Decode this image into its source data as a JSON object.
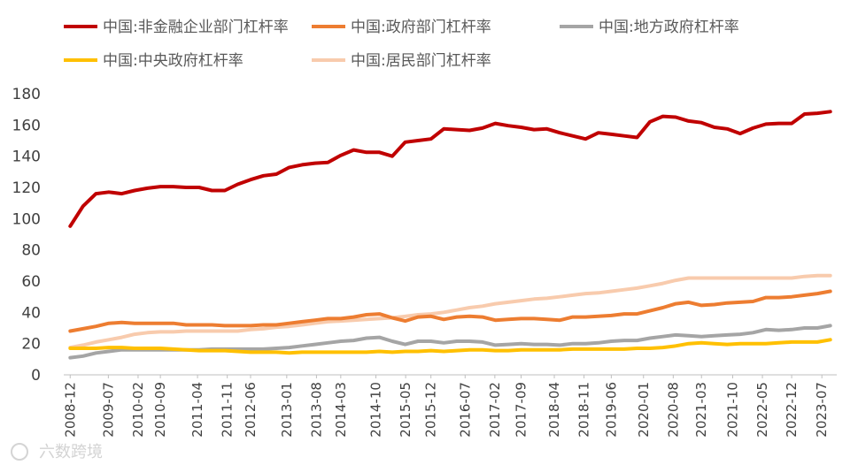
{
  "chart_data": {
    "type": "line",
    "title": "",
    "xlabel": "",
    "ylabel": "",
    "ylim": [
      0,
      180
    ],
    "yticks": [
      0,
      20,
      40,
      60,
      80,
      100,
      120,
      140,
      160,
      180
    ],
    "grid": false,
    "legend_position": "top",
    "x_tick_labels": [
      "2008-12",
      "2009-07",
      "2010-02",
      "2010-09",
      "2011-04",
      "2011-11",
      "2012-06",
      "2013-01",
      "2013-08",
      "2014-03",
      "2014-10",
      "2015-05",
      "2015-12",
      "2016-07",
      "2017-02",
      "2017-09",
      "2018-04",
      "2018-11",
      "2019-06",
      "2020-01",
      "2020-08",
      "2021-03",
      "2021-10",
      "2022-05",
      "2022-12",
      "2023-07"
    ],
    "x": [
      "2008-12",
      "2009-03",
      "2009-06",
      "2009-09",
      "2009-12",
      "2010-03",
      "2010-06",
      "2010-09",
      "2010-12",
      "2011-03",
      "2011-06",
      "2011-09",
      "2011-12",
      "2012-03",
      "2012-06",
      "2012-09",
      "2012-12",
      "2013-03",
      "2013-06",
      "2013-09",
      "2013-12",
      "2014-03",
      "2014-06",
      "2014-09",
      "2014-12",
      "2015-03",
      "2015-06",
      "2015-09",
      "2015-12",
      "2016-03",
      "2016-06",
      "2016-09",
      "2016-12",
      "2017-03",
      "2017-06",
      "2017-09",
      "2017-12",
      "2018-03",
      "2018-06",
      "2018-09",
      "2018-12",
      "2019-03",
      "2019-06",
      "2019-09",
      "2019-12",
      "2020-03",
      "2020-06",
      "2020-09",
      "2020-12",
      "2021-03",
      "2021-06",
      "2021-09",
      "2021-12",
      "2022-03",
      "2022-06",
      "2022-09",
      "2022-12",
      "2023-03",
      "2023-06",
      "2023-09"
    ],
    "series": [
      {
        "name": "中国:非金融企业部门杠杆率",
        "color": "#C00000",
        "values": [
          95.2,
          108.0,
          116.0,
          117.0,
          116.0,
          118.0,
          119.5,
          120.5,
          120.5,
          120.0,
          120.0,
          118.0,
          118.0,
          122.0,
          125.0,
          127.5,
          128.5,
          132.8,
          134.5,
          135.5,
          136.0,
          140.5,
          144.0,
          142.5,
          142.5,
          140.0,
          149.0,
          150.0,
          151.0,
          157.5,
          157.0,
          156.5,
          158.0,
          161.0,
          159.5,
          158.5,
          157.0,
          157.5,
          155.0,
          153.0,
          151.0,
          155.0,
          154.0,
          153.0,
          152.0,
          162.0,
          165.5,
          165.0,
          162.5,
          161.5,
          158.5,
          157.5,
          154.5,
          158.0,
          160.5,
          161.0,
          161.0,
          167.0,
          167.5,
          168.5
        ]
      },
      {
        "name": "中国:政府部门杠杆率",
        "color": "#ED7D31",
        "values": [
          28.0,
          29.5,
          31.0,
          33.0,
          33.5,
          33.0,
          33.0,
          33.0,
          33.0,
          32.0,
          32.0,
          32.0,
          31.5,
          31.5,
          31.5,
          32.0,
          32.0,
          33.0,
          34.0,
          35.0,
          36.0,
          36.0,
          37.0,
          38.5,
          39.0,
          36.5,
          34.5,
          37.0,
          37.5,
          35.5,
          37.0,
          37.5,
          37.0,
          35.0,
          35.5,
          36.0,
          36.0,
          35.5,
          35.0,
          37.0,
          37.0,
          37.5,
          38.0,
          39.0,
          39.0,
          41.0,
          43.0,
          45.5,
          46.5,
          44.5,
          45.0,
          46.0,
          46.5,
          47.0,
          49.5,
          49.5,
          50.0,
          51.0,
          52.0,
          53.5
        ]
      },
      {
        "name": "中国:地方政府杠杆率",
        "color": "#A5A5A5",
        "values": [
          11.0,
          12.0,
          14.0,
          15.0,
          16.0,
          16.0,
          16.0,
          16.0,
          16.0,
          16.0,
          16.0,
          16.5,
          16.5,
          16.5,
          16.5,
          16.5,
          17.0,
          17.5,
          18.5,
          19.5,
          20.5,
          21.5,
          22.0,
          23.5,
          24.0,
          21.5,
          19.5,
          21.5,
          21.5,
          20.5,
          21.5,
          21.5,
          21.0,
          19.0,
          19.5,
          20.0,
          19.5,
          19.5,
          19.0,
          20.0,
          20.0,
          20.5,
          21.5,
          22.0,
          22.0,
          23.5,
          24.5,
          25.5,
          25.0,
          24.5,
          25.0,
          25.5,
          26.0,
          27.0,
          29.0,
          28.5,
          29.0,
          30.0,
          30.0,
          31.5
        ]
      },
      {
        "name": "中国:中央政府杠杆率",
        "color": "#FFC000",
        "values": [
          17.0,
          17.0,
          17.0,
          17.5,
          17.5,
          17.0,
          17.0,
          17.0,
          16.5,
          16.0,
          15.5,
          15.5,
          15.5,
          15.0,
          14.5,
          14.5,
          14.5,
          14.0,
          14.5,
          14.5,
          14.5,
          14.5,
          14.5,
          14.5,
          15.0,
          14.5,
          15.0,
          15.0,
          15.5,
          15.0,
          15.5,
          16.0,
          16.0,
          15.5,
          15.5,
          16.0,
          16.0,
          16.0,
          16.0,
          16.5,
          16.5,
          16.5,
          16.5,
          16.5,
          17.0,
          17.0,
          17.5,
          18.5,
          20.0,
          20.5,
          20.0,
          19.5,
          20.0,
          20.0,
          20.0,
          20.5,
          21.0,
          21.0,
          21.0,
          22.5
        ]
      },
      {
        "name": "中国:居民部门杠杆率",
        "color": "#F8CBAD",
        "values": [
          17.5,
          19.0,
          21.0,
          22.5,
          24.0,
          26.0,
          27.0,
          27.5,
          27.5,
          28.0,
          28.0,
          28.0,
          28.0,
          28.0,
          29.0,
          29.5,
          30.5,
          31.0,
          32.0,
          33.0,
          34.0,
          34.5,
          35.0,
          35.5,
          36.0,
          36.5,
          37.5,
          38.5,
          39.0,
          40.0,
          41.5,
          43.0,
          44.0,
          45.5,
          46.5,
          47.5,
          48.5,
          49.0,
          50.0,
          51.0,
          52.0,
          52.5,
          53.5,
          54.5,
          55.5,
          57.0,
          58.5,
          60.5,
          62.0,
          62.0,
          62.0,
          62.0,
          62.0,
          62.0,
          62.0,
          62.0,
          62.0,
          63.0,
          63.5,
          63.5
        ]
      }
    ]
  },
  "legend": [
    {
      "label": "中国:非金融企业部门杠杆率",
      "color": "#C00000"
    },
    {
      "label": "中国:政府部门杠杆率",
      "color": "#ED7D31"
    },
    {
      "label": "中国:地方政府杠杆率",
      "color": "#A5A5A5"
    },
    {
      "label": "中国:中央政府杠杆率",
      "color": "#FFC000"
    },
    {
      "label": "中国:居民部门杠杆率",
      "color": "#F8CBAD"
    }
  ],
  "watermark": {
    "text": "六数跨境"
  }
}
